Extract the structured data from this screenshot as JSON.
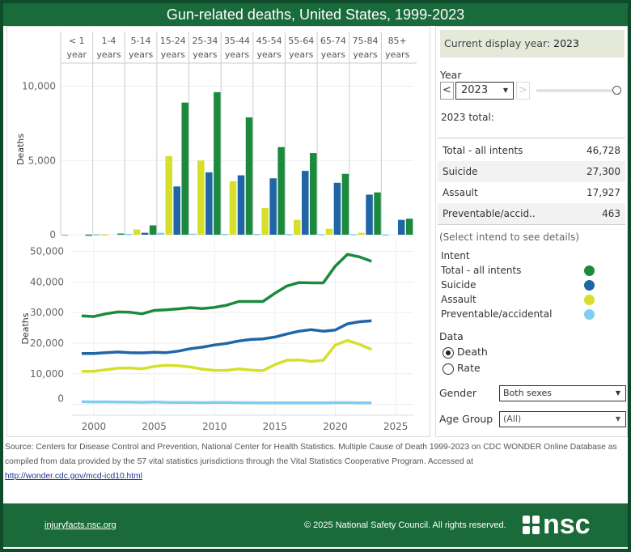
{
  "title": "Gun-related deaths, United States, 1999-2023",
  "colors": {
    "total": "#1b8a3e",
    "suicide": "#1f66a6",
    "assault": "#d6df2a",
    "preventable": "#7fcdf0"
  },
  "panel": {
    "display_year_label": "Current display year:",
    "display_year": "2023",
    "year_label": "Year",
    "year_value": "2023",
    "prev_icon": "<",
    "next_icon": ">",
    "dropdown_icon": "▼",
    "slider_fraction": 1.0,
    "total_heading": "2023 total:",
    "rows": [
      {
        "label": "Total - all intents",
        "value": "46,728"
      },
      {
        "label": "Suicide",
        "value": "27,300"
      },
      {
        "label": "Assault",
        "value": "17,927"
      },
      {
        "label": "Preventable/accid..",
        "value": "463"
      }
    ],
    "hint": "(Select intend to see details)",
    "intent_label": "Intent",
    "legend": [
      {
        "label": "Total - all intents",
        "key": "total"
      },
      {
        "label": "Suicide",
        "key": "suicide"
      },
      {
        "label": "Assault",
        "key": "assault"
      },
      {
        "label": "Preventable/accidental",
        "key": "preventable"
      }
    ],
    "data_label": "Data",
    "data_options": [
      "Death",
      "Rate"
    ],
    "data_selected": "Death",
    "gender_label": "Gender",
    "gender_value": "Both sexes",
    "age_label": "Age Group",
    "age_value": "(All)"
  },
  "chart_data": [
    {
      "type": "bar",
      "ylabel": "Deaths",
      "ylim": [
        0,
        11500
      ],
      "yticks": [
        0,
        5000,
        10000
      ],
      "ytick_labels": [
        "0",
        "5,000",
        "10,000"
      ],
      "categories": [
        [
          "< 1",
          "year"
        ],
        [
          "1-4",
          "years"
        ],
        [
          "5-14",
          "years"
        ],
        [
          "15-24",
          "years"
        ],
        [
          "25-34",
          "years"
        ],
        [
          "35-44",
          "years"
        ],
        [
          "45-54",
          "years"
        ],
        [
          "55-64",
          "years"
        ],
        [
          "65-74",
          "years"
        ],
        [
          "75-84",
          "years"
        ],
        [
          "85+",
          "years"
        ]
      ],
      "series": [
        {
          "name": "Preventable/accidental",
          "key": "preventable",
          "values": [
            10,
            40,
            60,
            130,
            70,
            60,
            60,
            50,
            40,
            40,
            20
          ]
        },
        {
          "name": "Assault",
          "key": "assault",
          "values": [
            0,
            30,
            350,
            5300,
            5000,
            3600,
            1800,
            1000,
            400,
            130,
            0
          ]
        },
        {
          "name": "Suicide",
          "key": "suicide",
          "values": [
            0,
            0,
            130,
            3250,
            4200,
            4000,
            3800,
            4300,
            3500,
            2700,
            1000
          ]
        },
        {
          "name": "Total - all intents",
          "key": "total",
          "values": [
            10,
            80,
            630,
            8900,
            9600,
            7900,
            5900,
            5500,
            4100,
            2850,
            1080
          ]
        }
      ]
    },
    {
      "type": "line",
      "ylabel": "Deaths",
      "ylim": [
        -2500,
        52000
      ],
      "xlim": [
        1995.5,
        2026
      ],
      "yticks": [
        0,
        10000,
        20000,
        30000,
        40000,
        50000
      ],
      "ytick_labels": [
        "0",
        "10,000",
        "20,000",
        "30,000",
        "40,000",
        "50,000"
      ],
      "xticks": [
        2000,
        2005,
        2010,
        2015,
        2020,
        2025
      ],
      "xtick_labels": [
        "2000",
        "2005",
        "2010",
        "2015",
        "2020",
        "2025"
      ],
      "x": [
        1999,
        2000,
        2001,
        2002,
        2003,
        2004,
        2005,
        2006,
        2007,
        2008,
        2009,
        2010,
        2011,
        2012,
        2013,
        2014,
        2015,
        2016,
        2017,
        2018,
        2019,
        2020,
        2021,
        2022,
        2023
      ],
      "series": [
        {
          "name": "Total - all intents",
          "key": "total",
          "values": [
            28900,
            28700,
            29600,
            30200,
            30100,
            29600,
            30700,
            30900,
            31200,
            31600,
            31300,
            31700,
            32400,
            33600,
            33600,
            33600,
            36300,
            38700,
            39800,
            39700,
            39700,
            45200,
            49000,
            48200,
            46728
          ]
        },
        {
          "name": "Suicide",
          "key": "suicide",
          "values": [
            16600,
            16600,
            16900,
            17100,
            16900,
            16800,
            17000,
            16900,
            17400,
            18200,
            18700,
            19400,
            19900,
            20700,
            21200,
            21400,
            22000,
            23000,
            23900,
            24400,
            23900,
            24300,
            26300,
            27000,
            27300
          ]
        },
        {
          "name": "Assault",
          "key": "assault",
          "values": [
            10800,
            10800,
            11300,
            11800,
            11900,
            11600,
            12400,
            12800,
            12600,
            12200,
            11500,
            11100,
            11100,
            11600,
            11200,
            11000,
            13000,
            14400,
            14500,
            14000,
            14400,
            19400,
            20900,
            19600,
            17927
          ]
        },
        {
          "name": "Preventable/accidental",
          "key": "preventable",
          "values": [
            824,
            776,
            802,
            762,
            730,
            649,
            789,
            642,
            613,
            592,
            554,
            606,
            591,
            548,
            505,
            461,
            489,
            495,
            486,
            458,
            486,
            535,
            549,
            463,
            463
          ]
        }
      ]
    }
  ],
  "source": {
    "text": "Source:  Centers for Disease Control and Prevention, National Center for Health Statistics. Multiple Cause of Death 1999-2023 on CDC WONDER Online Database  as compiled from data provided by the 57 vital statistics jurisdictions through the Vital Statistics Cooperative Program. Accessed at",
    "link": "http://wonder.cdc.gov/mcd-icd10.html"
  },
  "footer": {
    "site": "injuryfacts.nsc.org",
    "copyright": "© 2025 National Safety Council. All rights reserved.",
    "logo": "nsc"
  }
}
